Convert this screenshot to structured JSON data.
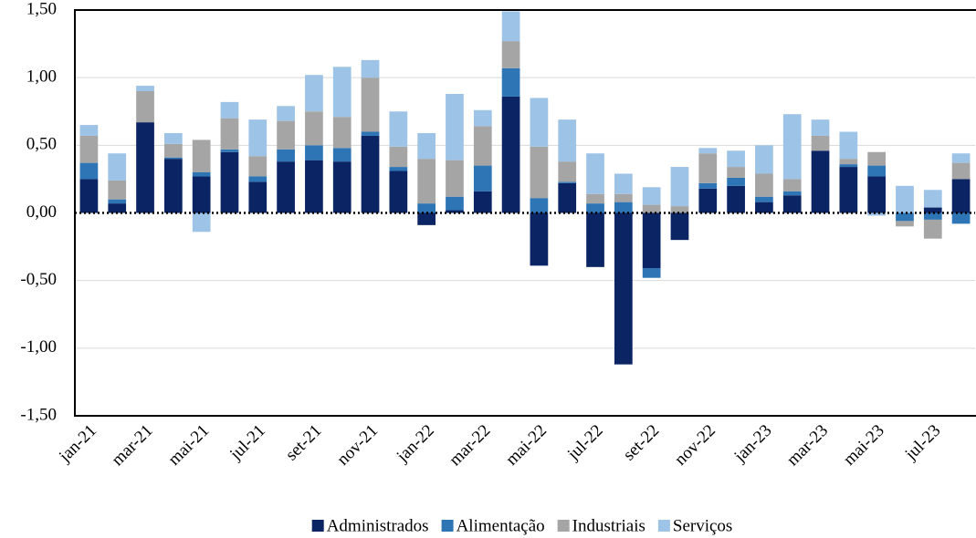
{
  "chart_data": {
    "type": "bar",
    "stacked": true,
    "categories": [
      "jan-21",
      null,
      "mar-21",
      null,
      "mai-21",
      null,
      "jul-21",
      null,
      "set-21",
      null,
      "nov-21",
      null,
      "jan-22",
      null,
      "mar-22",
      null,
      "mai-22",
      null,
      "jul-22",
      null,
      "set-22",
      null,
      "nov-22",
      null,
      "jan-23",
      null,
      "mar-23",
      null,
      "mai-23",
      null,
      "jul-23",
      null
    ],
    "series": [
      {
        "name": "Administrados",
        "color": "#0b2463",
        "values": [
          0.25,
          0.07,
          0.67,
          0.4,
          0.27,
          0.45,
          0.23,
          0.38,
          0.39,
          0.38,
          0.57,
          0.31,
          -0.09,
          0.02,
          0.16,
          0.86,
          -0.39,
          0.22,
          -0.4,
          -1.12,
          -0.41,
          -0.2,
          0.18,
          0.2,
          0.08,
          0.13,
          0.46,
          0.34,
          0.27,
          0.0,
          0.04,
          0.25
        ]
      },
      {
        "name": "Alimentação",
        "color": "#2e75b6",
        "values": [
          0.12,
          0.03,
          0.0,
          0.01,
          0.03,
          0.02,
          0.04,
          0.09,
          0.11,
          0.1,
          0.03,
          0.03,
          0.07,
          0.1,
          0.19,
          0.21,
          0.11,
          0.01,
          0.07,
          0.08,
          -0.07,
          0.0,
          0.04,
          0.06,
          0.04,
          0.03,
          0.0,
          0.02,
          0.08,
          -0.06,
          -0.05,
          -0.08
        ]
      },
      {
        "name": "Industriais",
        "color": "#a5a5a5",
        "values": [
          0.2,
          0.14,
          0.23,
          0.1,
          0.24,
          0.23,
          0.15,
          0.21,
          0.25,
          0.23,
          0.4,
          0.15,
          0.33,
          0.27,
          0.29,
          0.2,
          0.38,
          0.15,
          0.07,
          0.06,
          0.06,
          0.05,
          0.22,
          0.08,
          0.17,
          0.09,
          0.11,
          0.04,
          0.1,
          -0.04,
          -0.14,
          0.12
        ]
      },
      {
        "name": "Serviços",
        "color": "#9dc3e6",
        "values": [
          0.08,
          0.2,
          0.04,
          0.08,
          -0.14,
          0.12,
          0.27,
          0.11,
          0.27,
          0.37,
          0.13,
          0.26,
          0.19,
          0.49,
          0.12,
          0.22,
          0.36,
          0.31,
          0.3,
          0.15,
          0.13,
          0.29,
          0.04,
          0.12,
          0.21,
          0.48,
          0.12,
          0.2,
          -0.02,
          0.2,
          0.13,
          0.07
        ]
      }
    ],
    "ylim": [
      -1.5,
      1.5
    ],
    "yticks": [
      {
        "value": -1.5,
        "label": "-1,50"
      },
      {
        "value": -1,
        "label": "-1,00"
      },
      {
        "value": -0.5,
        "label": "-0,50"
      },
      {
        "value": 0,
        "label": "0,00"
      },
      {
        "value": 0.5,
        "label": "0,50"
      },
      {
        "value": 1,
        "label": "1,00"
      },
      {
        "value": 1.5,
        "label": "1,50"
      }
    ],
    "grid": true,
    "legend": "bottom"
  }
}
